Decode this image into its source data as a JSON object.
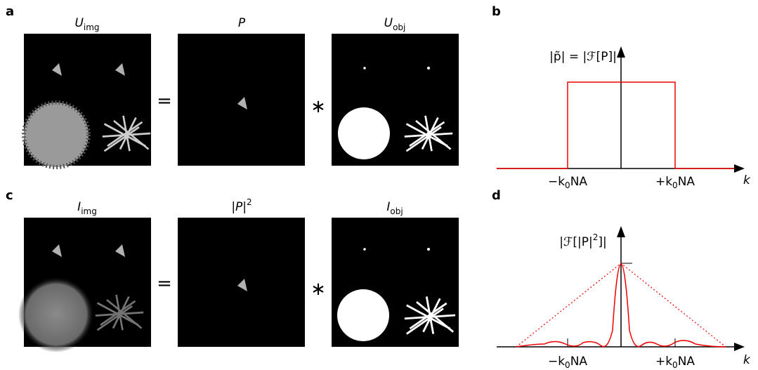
{
  "panels": {
    "a": {
      "label": "a",
      "titles": [
        {
          "main": "U",
          "sub": "img"
        },
        {
          "main": "P"
        },
        {
          "main": "U",
          "sub": "obj"
        }
      ],
      "operators": [
        "=",
        "∗"
      ]
    },
    "b": {
      "label": "b",
      "y_label": "|p̃| = |ℱ[P]|",
      "x_ticks": [
        {
          "pre": "−k",
          "sub": "0",
          "post": "NA"
        },
        {
          "pre": "+k",
          "sub": "0",
          "post": "NA"
        }
      ],
      "x_label": "k"
    },
    "c": {
      "label": "c",
      "titles": [
        {
          "main": "I",
          "sub": "img"
        },
        {
          "main": "|P|",
          "sup": "2"
        },
        {
          "main": "I",
          "sub": "obj"
        }
      ],
      "operators": [
        "=",
        "∗"
      ]
    },
    "d": {
      "label": "d",
      "y_label": {
        "main": "|ℱ[|P|",
        "sup": "2",
        "post": "]|"
      },
      "x_ticks": [
        {
          "pre": "−k",
          "sub": "0",
          "post": "NA"
        },
        {
          "pre": "+k",
          "sub": "0",
          "post": "NA"
        }
      ],
      "x_label": "k"
    }
  }
}
